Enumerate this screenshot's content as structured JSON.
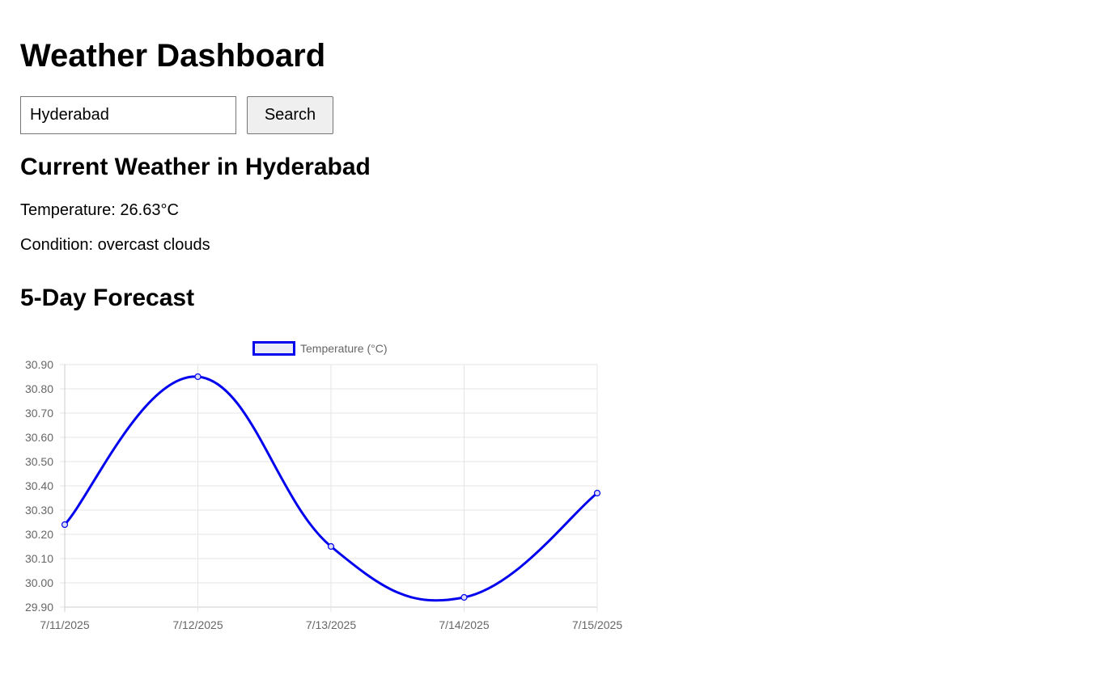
{
  "header": {
    "title": "Weather Dashboard"
  },
  "search": {
    "value": "Hyderabad",
    "button_label": "Search"
  },
  "current": {
    "title": "Current Weather in Hyderabad",
    "temperature_label": "Temperature:",
    "temperature_value": "26.63°C",
    "condition_label": "Condition:",
    "condition_value": "overcast clouds"
  },
  "forecast": {
    "title": "5-Day Forecast"
  },
  "chart_data": {
    "type": "line",
    "categories": [
      "7/11/2025",
      "7/12/2025",
      "7/13/2025",
      "7/14/2025",
      "7/15/2025"
    ],
    "series": [
      {
        "name": "Temperature (°C)",
        "values": [
          30.24,
          30.85,
          30.15,
          29.94,
          30.37
        ],
        "color": "#0000ee"
      }
    ],
    "ylim": [
      29.9,
      30.9
    ],
    "yticks": [
      "30.90",
      "30.80",
      "30.70",
      "30.60",
      "30.50",
      "30.40",
      "30.30",
      "30.20",
      "30.10",
      "30.00",
      "29.90"
    ],
    "legend_position": "top",
    "grid": true
  }
}
